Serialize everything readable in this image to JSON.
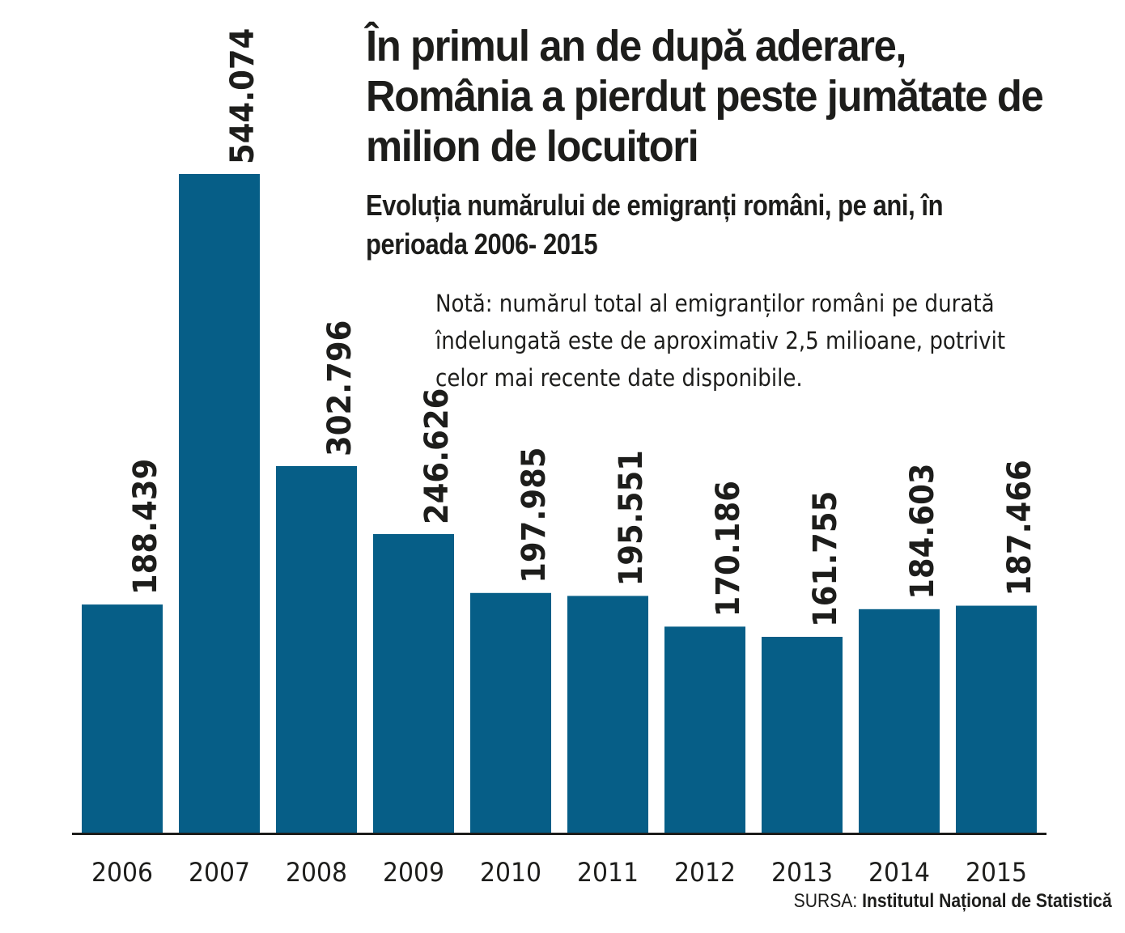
{
  "chart_data": {
    "type": "bar",
    "title": "În primul an de după aderare, România a pierdut peste jumătate de milion de locuitori",
    "subtitle": "Evoluția numărului de emigranți români, pe ani, în perioada 2006- 2015",
    "note": "Notă: numărul total al emigranților români pe durată îndelungată este de aproximativ 2,5 milioane, potrivit celor mai recente date disponibile.",
    "categories": [
      "2006",
      "2007",
      "2008",
      "2009",
      "2010",
      "2011",
      "2012",
      "2013",
      "2014",
      "2015"
    ],
    "values": [
      188439,
      544074,
      302796,
      246626,
      197985,
      195551,
      170186,
      161755,
      184603,
      187466
    ],
    "value_labels": [
      "188.439",
      "544.074",
      "302.796",
      "246.626",
      "197.985",
      "195.551",
      "170.186",
      "161.755",
      "184.603",
      "187.466"
    ],
    "xlabel": "",
    "ylabel": "",
    "ylim": [
      0,
      544074
    ],
    "grid": false,
    "bar_color": "#065e87",
    "axis_color": "#1d1d1b"
  },
  "source": {
    "prefix": "SURSA:",
    "name": "Institutul Național de Statistică"
  }
}
